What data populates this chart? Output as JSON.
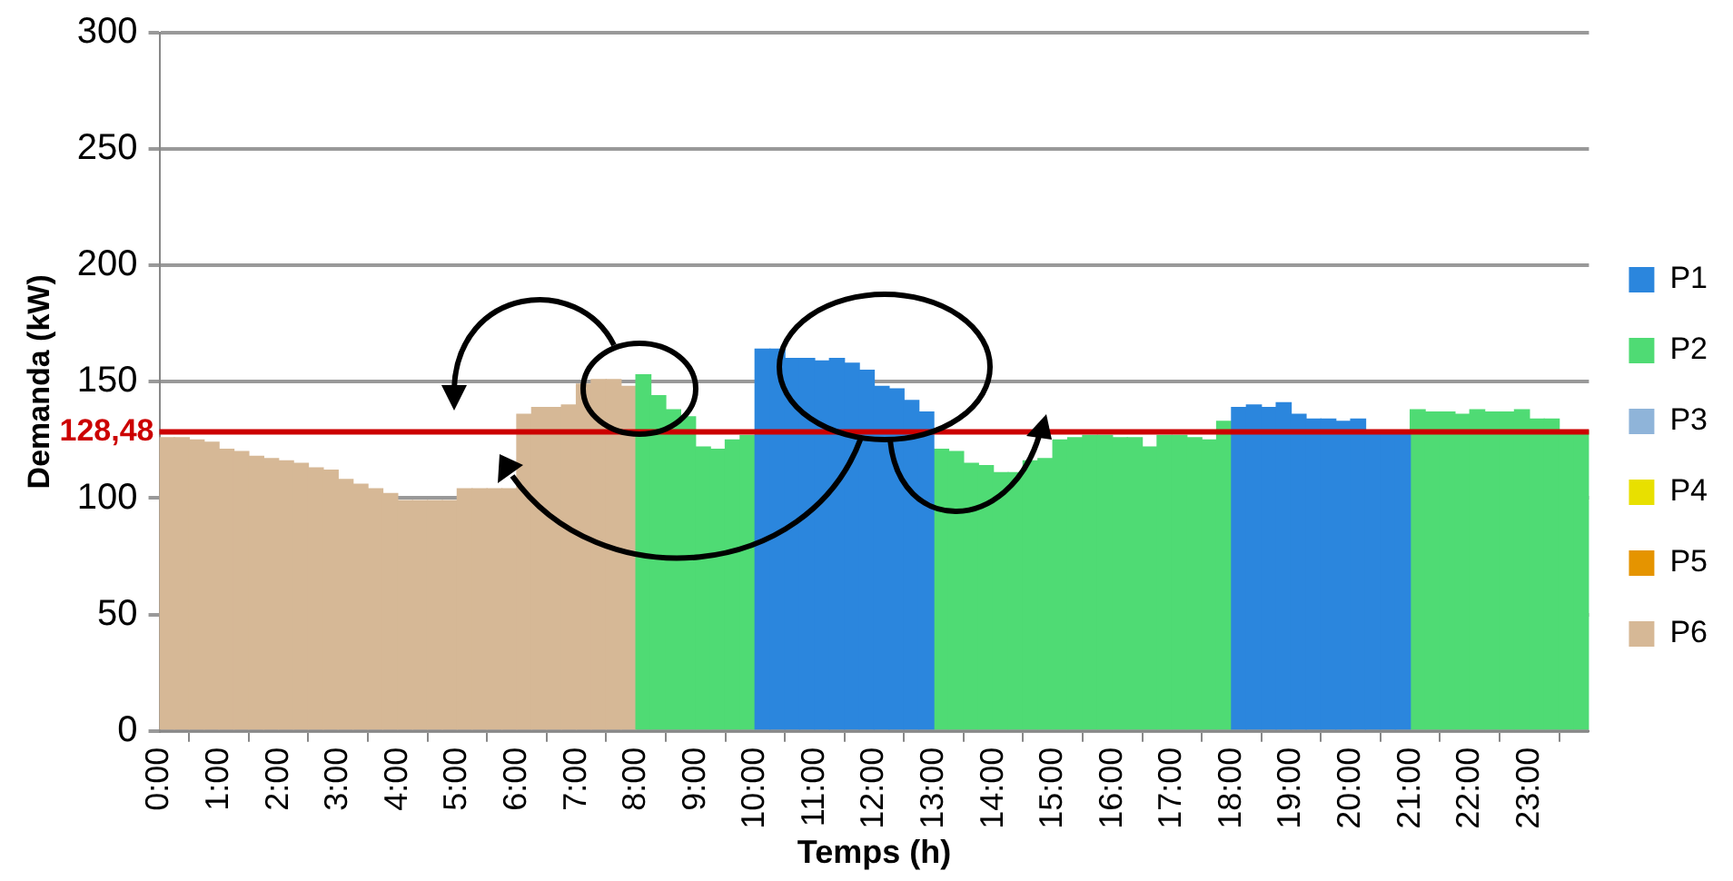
{
  "chart_data": {
    "type": "bar",
    "xlabel": "Temps (h)",
    "ylabel": "Demanda (kW)",
    "x": [
      0.125,
      0.375,
      0.625,
      0.875,
      1.125,
      1.375,
      1.625,
      1.875,
      2.125,
      2.375,
      2.625,
      2.875,
      3.125,
      3.375,
      3.625,
      3.875,
      4.125,
      4.375,
      4.625,
      4.875,
      5.125,
      5.375,
      5.625,
      5.875,
      6.125,
      6.375,
      6.625,
      6.875,
      7.125,
      7.375,
      7.625,
      7.875,
      8.125,
      8.375,
      8.625,
      8.875,
      9.125,
      9.375,
      9.625,
      9.875,
      10.125,
      10.375,
      10.625,
      10.875,
      11.125,
      11.375,
      11.625,
      11.875,
      12.125,
      12.375,
      12.625,
      12.875,
      13.125,
      13.375,
      13.625,
      13.875,
      14.125,
      14.375,
      14.625,
      14.875,
      15.125,
      15.375,
      15.625,
      15.875,
      16.125,
      16.375,
      16.625,
      16.875,
      17.125,
      17.375,
      17.625,
      17.875,
      18.125,
      18.375,
      18.625,
      18.875,
      19.125,
      19.375,
      19.625,
      19.875,
      20.125,
      20.375,
      20.625,
      20.875,
      21.125,
      21.375,
      21.625,
      21.875,
      22.125,
      22.375,
      22.625,
      22.875,
      23.125,
      23.375,
      23.625,
      23.875
    ],
    "series": [
      {
        "name": "P1",
        "color": "#2b86dd",
        "values": [
          null,
          null,
          null,
          null,
          null,
          null,
          null,
          null,
          null,
          null,
          null,
          null,
          null,
          null,
          null,
          null,
          null,
          null,
          null,
          null,
          null,
          null,
          null,
          null,
          null,
          null,
          null,
          null,
          null,
          null,
          null,
          null,
          null,
          null,
          null,
          null,
          null,
          null,
          null,
          null,
          164,
          164,
          160,
          160,
          159,
          160,
          158,
          155,
          148,
          147,
          142,
          137,
          null,
          null,
          null,
          null,
          null,
          null,
          null,
          null,
          null,
          null,
          null,
          null,
          null,
          null,
          null,
          null,
          null,
          null,
          null,
          null,
          139,
          140,
          139,
          141,
          136,
          134,
          134,
          133,
          134,
          129,
          129,
          129,
          null,
          null,
          null,
          null,
          null,
          null,
          null,
          null,
          null,
          null,
          null,
          null
        ]
      },
      {
        "name": "P2",
        "color": "#4fdb74",
        "values": [
          null,
          null,
          null,
          null,
          null,
          null,
          null,
          null,
          null,
          null,
          null,
          null,
          null,
          null,
          null,
          null,
          null,
          null,
          null,
          null,
          null,
          null,
          null,
          null,
          null,
          null,
          null,
          null,
          null,
          null,
          null,
          null,
          153,
          144,
          138,
          135,
          122,
          121,
          125,
          127,
          null,
          null,
          null,
          null,
          null,
          null,
          null,
          null,
          null,
          null,
          null,
          null,
          121,
          120,
          115,
          114,
          111,
          111,
          116,
          117,
          125,
          126,
          127,
          127,
          126,
          126,
          122,
          127,
          127,
          126,
          125,
          133,
          null,
          null,
          null,
          null,
          null,
          null,
          null,
          null,
          null,
          null,
          null,
          null,
          138,
          137,
          137,
          136,
          138,
          137,
          137,
          138,
          134,
          134,
          129,
          129
        ]
      },
      {
        "name": "P3",
        "color": "#8fb4d9",
        "values": [
          null,
          null,
          null,
          null,
          null,
          null,
          null,
          null,
          null,
          null,
          null,
          null,
          null,
          null,
          null,
          null,
          null,
          null,
          null,
          null,
          null,
          null,
          null,
          null,
          null,
          null,
          null,
          null,
          null,
          null,
          null,
          null,
          null,
          null,
          null,
          null,
          null,
          null,
          null,
          null,
          null,
          null,
          null,
          null,
          null,
          null,
          null,
          null,
          null,
          null,
          null,
          null,
          null,
          null,
          null,
          null,
          null,
          null,
          null,
          null,
          null,
          null,
          null,
          null,
          null,
          null,
          null,
          null,
          null,
          null,
          null,
          null,
          null,
          null,
          null,
          null,
          null,
          null,
          null,
          null,
          null,
          null,
          null,
          null,
          null,
          null,
          null,
          null,
          null,
          null,
          null,
          null,
          null,
          null,
          null,
          null
        ]
      },
      {
        "name": "P4",
        "color": "#e8e000",
        "values": [
          null,
          null,
          null,
          null,
          null,
          null,
          null,
          null,
          null,
          null,
          null,
          null,
          null,
          null,
          null,
          null,
          null,
          null,
          null,
          null,
          null,
          null,
          null,
          null,
          null,
          null,
          null,
          null,
          null,
          null,
          null,
          null,
          null,
          null,
          null,
          null,
          null,
          null,
          null,
          null,
          null,
          null,
          null,
          null,
          null,
          null,
          null,
          null,
          null,
          null,
          null,
          null,
          null,
          null,
          null,
          null,
          null,
          null,
          null,
          null,
          null,
          null,
          null,
          null,
          null,
          null,
          null,
          null,
          null,
          null,
          null,
          null,
          null,
          null,
          null,
          null,
          null,
          null,
          null,
          null,
          null,
          null,
          null,
          null,
          null,
          null,
          null,
          null,
          null,
          null,
          null,
          null,
          null,
          null,
          null,
          null
        ]
      },
      {
        "name": "P5",
        "color": "#e59400",
        "values": [
          null,
          null,
          null,
          null,
          null,
          null,
          null,
          null,
          null,
          null,
          null,
          null,
          null,
          null,
          null,
          null,
          null,
          null,
          null,
          null,
          null,
          null,
          null,
          null,
          null,
          null,
          null,
          null,
          null,
          null,
          null,
          null,
          null,
          null,
          null,
          null,
          null,
          null,
          null,
          null,
          null,
          null,
          null,
          null,
          null,
          null,
          null,
          null,
          null,
          null,
          null,
          null,
          null,
          null,
          null,
          null,
          null,
          null,
          null,
          null,
          null,
          null,
          null,
          null,
          null,
          null,
          null,
          null,
          null,
          null,
          null,
          null,
          null,
          null,
          null,
          null,
          null,
          null,
          null,
          null,
          null,
          null,
          null,
          null,
          null,
          null,
          null,
          null,
          null,
          null,
          null,
          null,
          null,
          null,
          null,
          null
        ]
      },
      {
        "name": "P6",
        "color": "#d6b896",
        "values": [
          126,
          126,
          125,
          124,
          121,
          120,
          118,
          117,
          116,
          115,
          113,
          112,
          108,
          106,
          104,
          102,
          99,
          99,
          99,
          99,
          104,
          104,
          104,
          104,
          136,
          139,
          139,
          140,
          149,
          151,
          151,
          148,
          null,
          null,
          null,
          null,
          null,
          null,
          null,
          null,
          null,
          null,
          null,
          null,
          null,
          null,
          null,
          null,
          null,
          null,
          null,
          null,
          null,
          null,
          null,
          null,
          null,
          null,
          null,
          null,
          null,
          null,
          null,
          null,
          null,
          null,
          null,
          null,
          null,
          null,
          null,
          null,
          null,
          null,
          null,
          null,
          null,
          null,
          null,
          null,
          null,
          null,
          null,
          null,
          null,
          null,
          null,
          null,
          null,
          null,
          null,
          null,
          null,
          null,
          null,
          null
        ]
      }
    ],
    "xlim": [
      0,
      24
    ],
    "xticks": [
      {
        "value": 0,
        "label": "0:00"
      },
      {
        "value": 1,
        "label": "1:00"
      },
      {
        "value": 2,
        "label": "2:00"
      },
      {
        "value": 3,
        "label": "3:00"
      },
      {
        "value": 4,
        "label": "4:00"
      },
      {
        "value": 5,
        "label": "5:00"
      },
      {
        "value": 6,
        "label": "6:00"
      },
      {
        "value": 7,
        "label": "7:00"
      },
      {
        "value": 8,
        "label": "8:00"
      },
      {
        "value": 9,
        "label": "9:00"
      },
      {
        "value": 10,
        "label": "10:00"
      },
      {
        "value": 11,
        "label": "11:00"
      },
      {
        "value": 12,
        "label": "12:00"
      },
      {
        "value": 13,
        "label": "13:00"
      },
      {
        "value": 14,
        "label": "14:00"
      },
      {
        "value": 15,
        "label": "15:00"
      },
      {
        "value": 16,
        "label": "16:00"
      },
      {
        "value": 17,
        "label": "17:00"
      },
      {
        "value": 18,
        "label": "18:00"
      },
      {
        "value": 19,
        "label": "19:00"
      },
      {
        "value": 20,
        "label": "20:00"
      },
      {
        "value": 21,
        "label": "21:00"
      },
      {
        "value": 22,
        "label": "22:00"
      },
      {
        "value": 23,
        "label": "23:00"
      }
    ],
    "ylim": [
      0,
      300
    ],
    "yticks": [
      0,
      50,
      100,
      150,
      200,
      250,
      300
    ],
    "grid": "y",
    "legend": "right",
    "ref_lines": [
      {
        "axis": "y",
        "value": 128.48,
        "label": "128,48",
        "color": "#cc0000"
      }
    ]
  }
}
